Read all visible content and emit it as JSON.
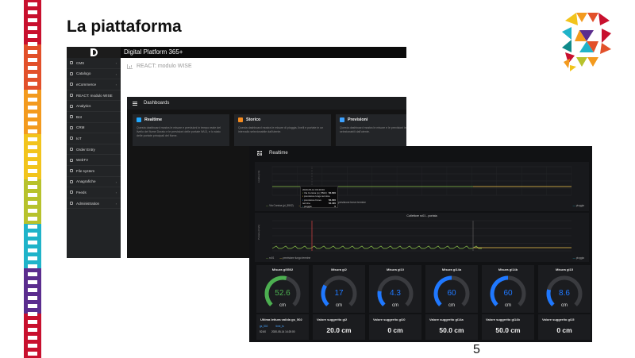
{
  "slide": {
    "title": "La piattaforma",
    "page_number": "5"
  },
  "colors": {
    "film": [
      "#c8102e",
      "#e2502a",
      "#f39a1e",
      "#f2c41c",
      "#b7c22c",
      "#1fb3c9",
      "#5b2d8e",
      "#c8102e"
    ],
    "gauge_green": "#4caf50",
    "gauge_blue": "#1f78ff",
    "series_green": "#8bc34a",
    "series_yellow": "#f2c94c",
    "series_red": "#ff4d4d"
  },
  "platform": {
    "app_title": "Digital Platform 365+",
    "breadcrumb": "REACT: modulo WISE",
    "sidebar": [
      {
        "label": "CMS",
        "icon": "cloud-icon",
        "has_arrow": true
      },
      {
        "label": "Catalogo",
        "icon": "folder-icon",
        "has_arrow": true
      },
      {
        "label": "eCommerce",
        "icon": "cart-icon",
        "has_arrow": true
      },
      {
        "label": "REACT: modulo WISE",
        "icon": "monitor-icon",
        "has_arrow": false
      },
      {
        "label": "Analytics",
        "icon": "chart-icon",
        "has_arrow": false
      },
      {
        "label": "Bot",
        "icon": "bot-icon",
        "has_arrow": false
      },
      {
        "label": "CRM",
        "icon": "contacts-icon",
        "has_arrow": false
      },
      {
        "label": "IoT",
        "icon": "cloud-icon",
        "has_arrow": false
      },
      {
        "label": "Order Entry",
        "icon": "list-icon",
        "has_arrow": false
      },
      {
        "label": "WebTV",
        "icon": "tv-icon",
        "has_arrow": false
      },
      {
        "label": "File system",
        "icon": "folder-icon",
        "has_arrow": false
      },
      {
        "label": "Anagrafiche",
        "icon": "users-icon",
        "has_arrow": true
      },
      {
        "label": "Feeds",
        "icon": "rss-icon",
        "has_arrow": true
      },
      {
        "label": "Administration",
        "icon": "gear-icon",
        "has_arrow": true
      }
    ]
  },
  "dashboards": {
    "header": "Dashboards",
    "cards": [
      {
        "title": "Realtime",
        "color": "#1fa8ff",
        "desc": "Questa dashboard mostra le misure e previsioni in tempo reale del livello del fiume Dorato e le previsioni delle portate WLD, e lo stato delle portate principali del fiume."
      },
      {
        "title": "Storico",
        "color": "#f58b1f",
        "desc": "Questa dashboard mostra le misure di pioggia, livelli e portate in un intervallo selezionabile dall'utente."
      },
      {
        "title": "Previsioni",
        "color": "#3da2ff",
        "desc": "Questa dashboard mostra le misure e le previsioni in tempo reale selezionabili dall'utente."
      }
    ]
  },
  "realtime": {
    "header": "Realtime",
    "tooltip": {
      "title": "2020-05-14 00:40:00",
      "rows": [
        {
          "label": "Via Corsica (pi_5502)",
          "value": "52.600"
        },
        {
          "label": "previsione lungo termine",
          "value": "52.000"
        },
        {
          "label": "previsione breve termine",
          "value": "52.400"
        },
        {
          "label": "pioggia",
          "value": "0"
        }
      ]
    },
    "chart1_legend_right": "pioggia",
    "chart1_legend_left": "Via Corsica (pi_5502)",
    "chart1_legend_mid1": "previsione lungo termine",
    "chart1_legend_mid2": "previsione breve termine",
    "chart2_title": "Cutlettore ro01 - portata",
    "chart2_legend": [
      "ro01",
      "previsione lungo termine"
    ],
    "chart2_legend_right": "pioggia",
    "gauges": [
      {
        "title": "Misura gi5502",
        "value": "52.6",
        "unit": "cm",
        "color": "#4caf50",
        "fill": 0.55
      },
      {
        "title": "Misura gi2",
        "value": "17",
        "unit": "cm",
        "color": "#1f78ff",
        "fill": 0.28
      },
      {
        "title": "Misura gi10",
        "value": "4.3",
        "unit": "cm",
        "color": "#1f78ff",
        "fill": 0.2
      },
      {
        "title": "Misura gi14a",
        "value": "60",
        "unit": "cm",
        "color": "#1f78ff",
        "fill": 0.5
      },
      {
        "title": "Misura gi14b",
        "value": "60",
        "unit": "cm",
        "color": "#1f78ff",
        "fill": 0.5
      },
      {
        "title": "Misura gi15",
        "value": "8.6",
        "unit": "cm",
        "color": "#1f78ff",
        "fill": 0.22
      }
    ],
    "last_read": {
      "title": "Ultima lettura valida gs_502",
      "col1": "gs_502",
      "col2": "time_ts",
      "val1": "52.60",
      "val2": "2020-05-14 14:20:00"
    },
    "values": [
      {
        "title": "Valore suggerito gi2",
        "value": "20.0 cm"
      },
      {
        "title": "Valore suggerito gi10",
        "value": "0 cm"
      },
      {
        "title": "Valore suggerito gi14a",
        "value": "50.0 cm"
      },
      {
        "title": "Valore suggerito gi14b",
        "value": "50.0 cm"
      },
      {
        "title": "Valore suggerito gi15",
        "value": "0 cm"
      }
    ]
  }
}
